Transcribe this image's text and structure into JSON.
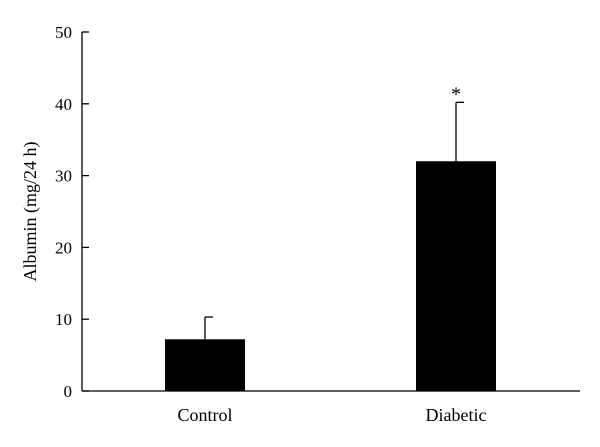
{
  "chart_data": {
    "type": "bar",
    "title": "",
    "xlabel": "",
    "ylabel": "Albumin (mg/24 h)",
    "categories": [
      "Control",
      "Diabetic"
    ],
    "values": [
      7.2,
      32
    ],
    "error_upper": [
      10.3,
      40.2
    ],
    "ylim": [
      0,
      50
    ],
    "yticks": [
      0,
      10,
      20,
      30,
      40,
      50
    ],
    "grid": false,
    "bar_color": "#000000",
    "annotations": [
      {
        "category": "Diabetic",
        "text": "*"
      }
    ]
  }
}
